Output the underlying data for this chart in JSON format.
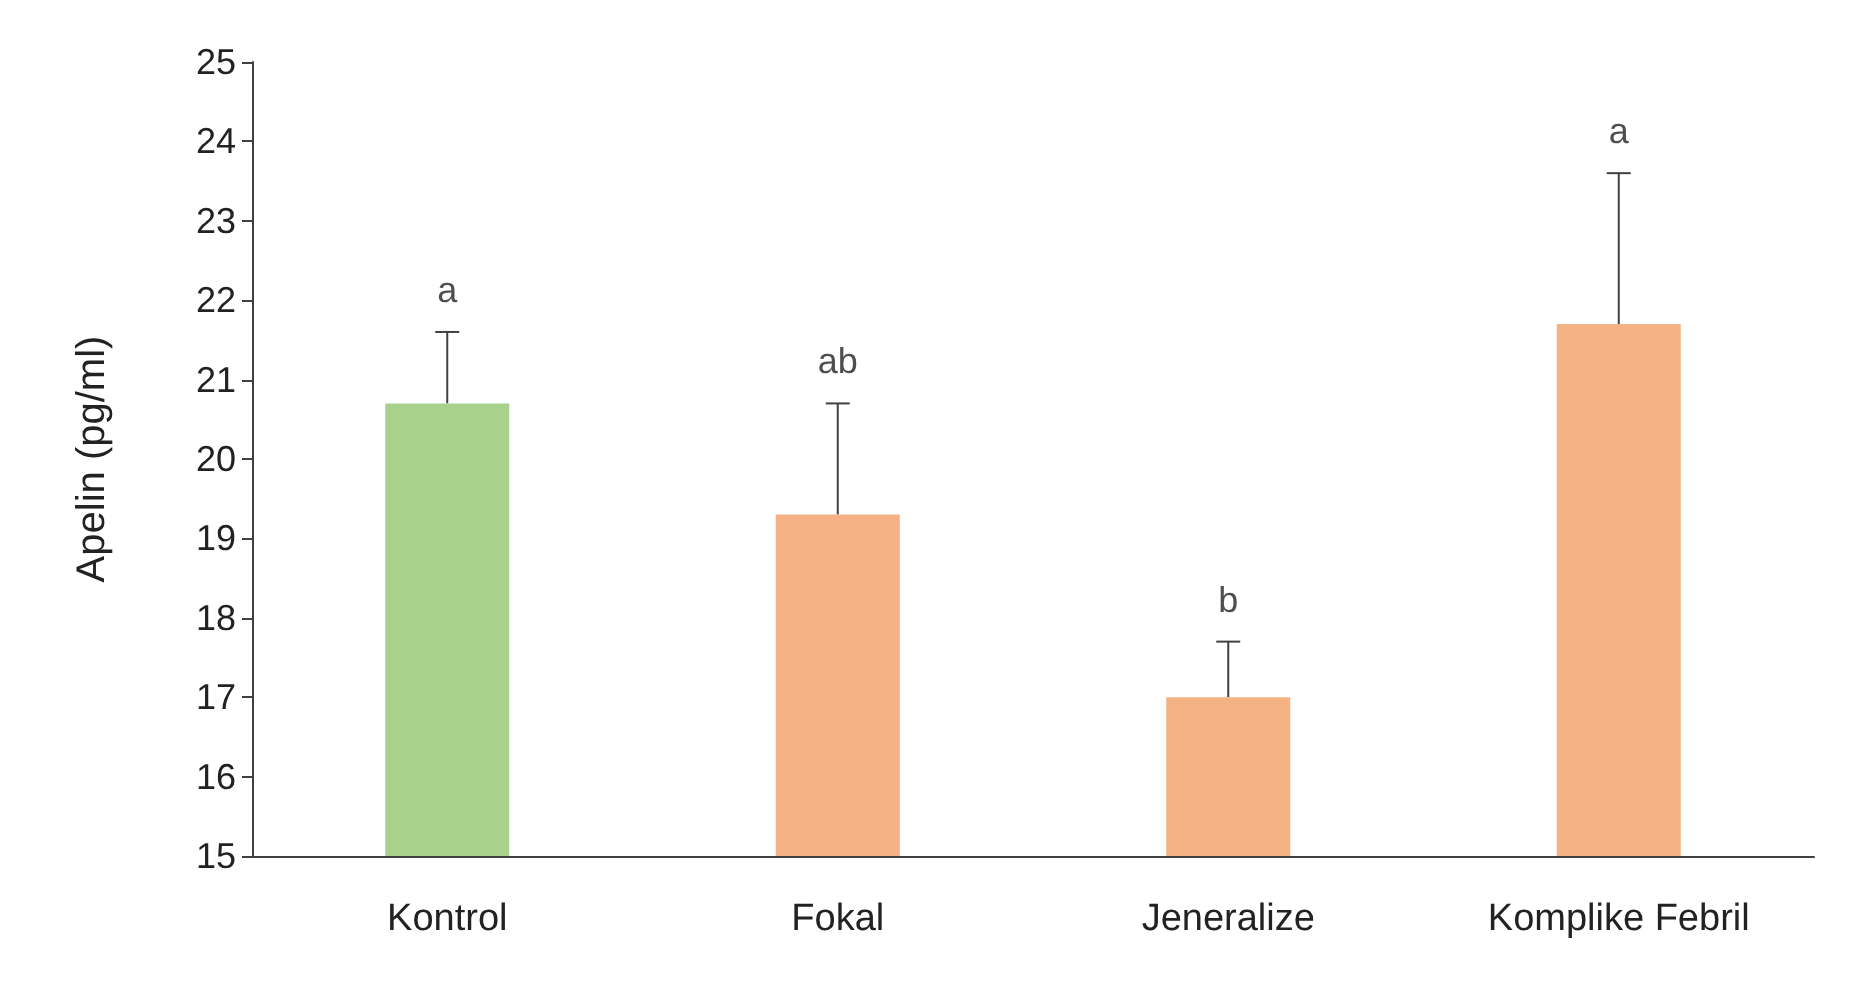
{
  "chart_data": {
    "type": "bar",
    "ylabel": "Apelin (pg/ml)",
    "categories": [
      "Kontrol",
      "Fokal",
      "Jeneralize",
      "Komplike Febril"
    ],
    "values": [
      20.7,
      19.3,
      17.0,
      21.7
    ],
    "colors": [
      "#a9d18e",
      "#f4b183",
      "#f4b183",
      "#f4b183"
    ],
    "errors": [
      [
        20.7,
        21.6
      ],
      [
        19.3,
        20.7
      ],
      [
        17.0,
        17.7
      ],
      [
        21.7,
        23.6
      ]
    ],
    "annotations": [
      {
        "text": "a",
        "x": "Kontrol",
        "y": 21.6
      },
      {
        "text": "ab",
        "x": "Fokal",
        "y": 20.7
      },
      {
        "text": "b",
        "x": "Jeneralize",
        "y": 17.7
      },
      {
        "text": "a",
        "x": "Komplike Febril",
        "y": 23.6
      }
    ],
    "ylim": [
      15,
      25
    ],
    "yticks": [
      15,
      16,
      17,
      18,
      19,
      20,
      21,
      22,
      23,
      24,
      25
    ],
    "grid": false
  }
}
